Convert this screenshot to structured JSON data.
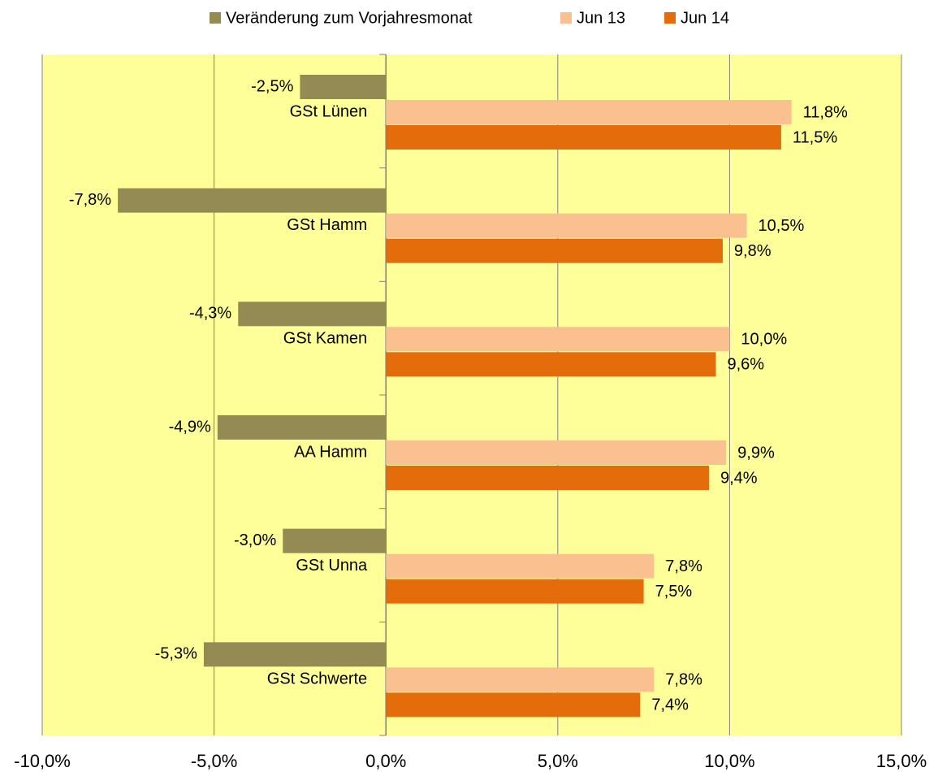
{
  "chart_data": {
    "type": "bar",
    "orientation": "horizontal",
    "categories": [
      "GSt Lünen",
      "GSt Hamm",
      "GSt Kamen",
      "AA Hamm",
      "GSt Unna",
      "GSt Schwerte"
    ],
    "series": [
      {
        "name": "Veränderung zum Vorjahresmonat",
        "color": "#948a54",
        "values": [
          -2.5,
          -7.8,
          -4.3,
          -4.9,
          -3.0,
          -5.3
        ],
        "value_labels": [
          "-2,5%",
          "-7,8%",
          "-4,3%",
          "-4,9%",
          "-3,0%",
          "-5,3%"
        ]
      },
      {
        "name": "Jun 13",
        "color": "#fac090",
        "values": [
          11.8,
          10.5,
          10.0,
          9.9,
          7.8,
          7.8
        ],
        "value_labels": [
          "11,8%",
          "10,5%",
          "10,0%",
          "9,9%",
          "7,8%",
          "7,8%"
        ]
      },
      {
        "name": "Jun 14",
        "color": "#e46c0a",
        "values": [
          11.5,
          9.8,
          9.6,
          9.4,
          7.5,
          7.4
        ],
        "value_labels": [
          "11,5%",
          "9,8%",
          "9,6%",
          "9,4%",
          "7,5%",
          "7,4%"
        ]
      }
    ],
    "xlim": [
      -10,
      15
    ],
    "xticks": [
      {
        "value": -10,
        "label": "-10,0%"
      },
      {
        "value": -5,
        "label": "-5,0%"
      },
      {
        "value": 0,
        "label": "0,0%"
      },
      {
        "value": 5,
        "label": "5,0%"
      },
      {
        "value": 10,
        "label": "10,0%"
      },
      {
        "value": 15,
        "label": "15,0%"
      }
    ],
    "grid": true,
    "legend": "top",
    "background": "#ffff99"
  }
}
